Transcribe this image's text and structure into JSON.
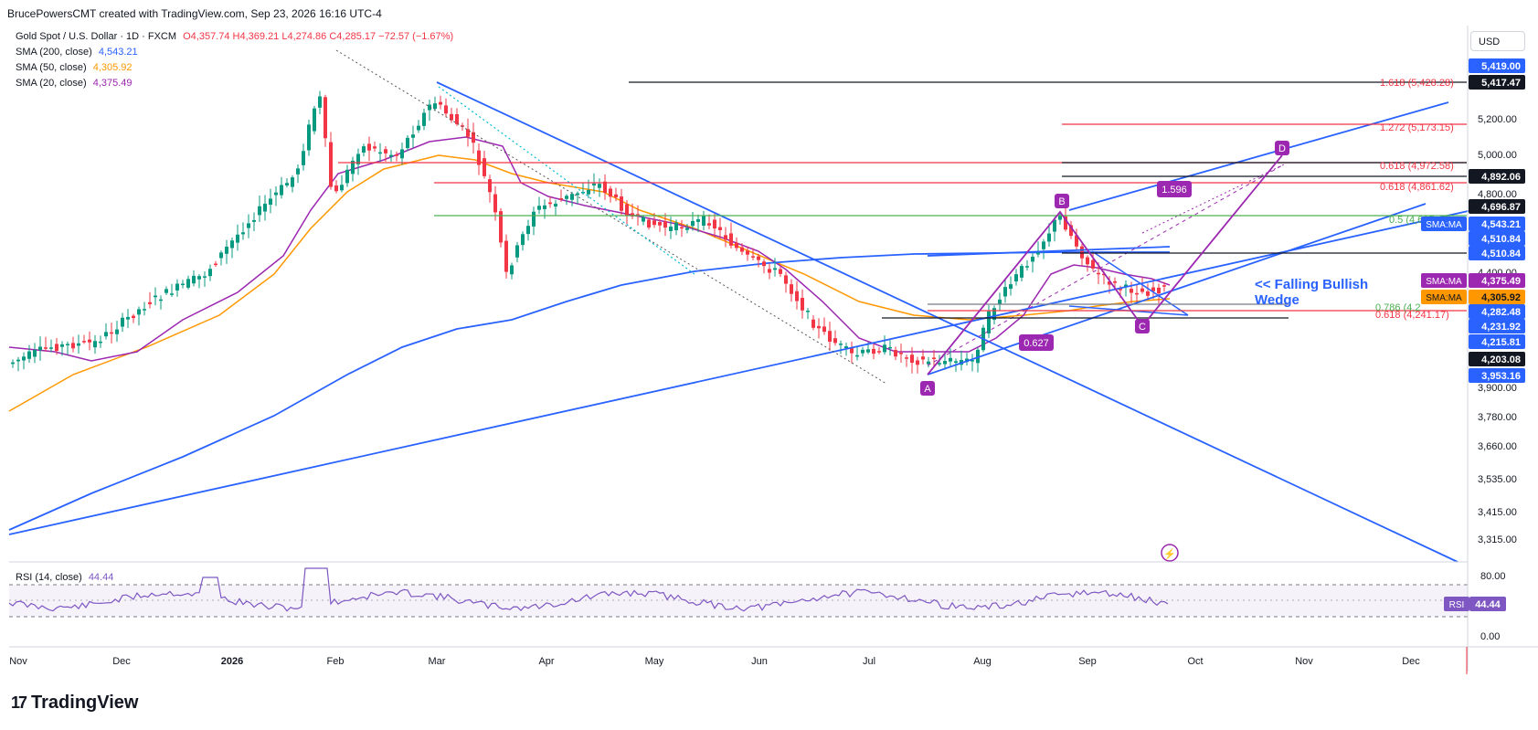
{
  "header": {
    "credit": "BrucePowersCMT created with TradingView.com, Sep 23, 2026 16:16 UTC-4"
  },
  "legend": {
    "symbol": "Gold Spot / U.S. Dollar · 1D · FXCM",
    "ohlc": "O4,357.74  H4,369.21  L4,274.86  C4,285.17  −72.57 (−1.67%)",
    "sma200_label": "SMA (200, close)",
    "sma200_value": "4,543.21",
    "sma50_label": "SMA (50, close)",
    "sma50_value": "4,305.92",
    "sma20_label": "SMA (20, close)",
    "sma20_value": "4,375.49",
    "rsi_label": "RSI (14, close)",
    "rsi_value": "44.44"
  },
  "brand": {
    "name": "TradingView",
    "logo_text": "17"
  },
  "currency": "USD",
  "colors": {
    "up": "#089981",
    "down": "#f23645",
    "sma200": "#2962ff",
    "sma50": "#ff9800",
    "sma20": "#9c27b0",
    "trend": "#2962ff",
    "pattern": "#9c27b0",
    "rsi": "#7e57c2"
  },
  "chart_data": {
    "type": "candlestick",
    "x_tick_labels": [
      "Nov",
      "Dec",
      "2026",
      "Feb",
      "Mar",
      "Apr",
      "May",
      "Jun",
      "Jul",
      "Aug",
      "Sep",
      "Oct",
      "Nov",
      "Dec"
    ],
    "y_tick_labels": [
      "5,200.00",
      "5,000.00",
      "4,800.00",
      "4,600.00",
      "4,400.00",
      "3,900.00",
      "3,780.00",
      "3,660.00",
      "3,535.00",
      "3,415.00",
      "3,315.00"
    ],
    "rsi_tick_labels": [
      "80.00",
      "0.00"
    ],
    "price_badges": [
      {
        "label": "5,419.00",
        "bg": "#2962ff",
        "fg": "#ffffff"
      },
      {
        "label": "5,417.47",
        "bg": "#131722",
        "fg": "#ffffff"
      },
      {
        "label": "4,892.06",
        "bg": "#131722",
        "fg": "#ffffff"
      },
      {
        "label": "4,696.87",
        "bg": "#131722",
        "fg": "#ffffff"
      },
      {
        "label": "4,543.21",
        "bg": "#2962ff",
        "fg": "#ffffff",
        "tag": "SMA:MA"
      },
      {
        "label": "4,510.84",
        "bg": "#2962ff",
        "fg": "#ffffff"
      },
      {
        "label": "4,510.84",
        "bg": "#2962ff",
        "fg": "#ffffff"
      },
      {
        "label": "4,375.49",
        "bg": "#9c27b0",
        "fg": "#ffffff",
        "tag": "SMA:MA"
      },
      {
        "label": "4,305.92",
        "bg": "#ff9800",
        "fg": "#131722",
        "tag": "SMA:MA"
      },
      {
        "label": "4,282.48",
        "bg": "#2962ff",
        "fg": "#ffffff"
      },
      {
        "label": "4,231.92",
        "bg": "#2962ff",
        "fg": "#ffffff"
      },
      {
        "label": "4,215.81",
        "bg": "#2962ff",
        "fg": "#ffffff"
      },
      {
        "label": "4,203.08",
        "bg": "#131722",
        "fg": "#ffffff"
      },
      {
        "label": "3,953.16",
        "bg": "#2962ff",
        "fg": "#ffffff"
      }
    ],
    "rsi_badge": {
      "tag": "RSI",
      "value": "44.44"
    },
    "fib_labels": [
      "1.618 (5,428.28)",
      "1.272 (5,173.15)",
      "0.618 (4,972.58)",
      "0.618 (4,861.62)",
      "0.5 (4,607.45)",
      "0.786 (4,2",
      "0.618 (4,241.17)"
    ],
    "pattern_points": [
      "A",
      "B",
      "C",
      "D"
    ],
    "ratio_labels": [
      "1.596",
      "0.627"
    ],
    "annotation": "<< Falling Bullish\nWedge",
    "ohlc_approx": {
      "open": 4357.74,
      "high": 4369.21,
      "low": 4274.86,
      "close": 4285.17
    }
  }
}
